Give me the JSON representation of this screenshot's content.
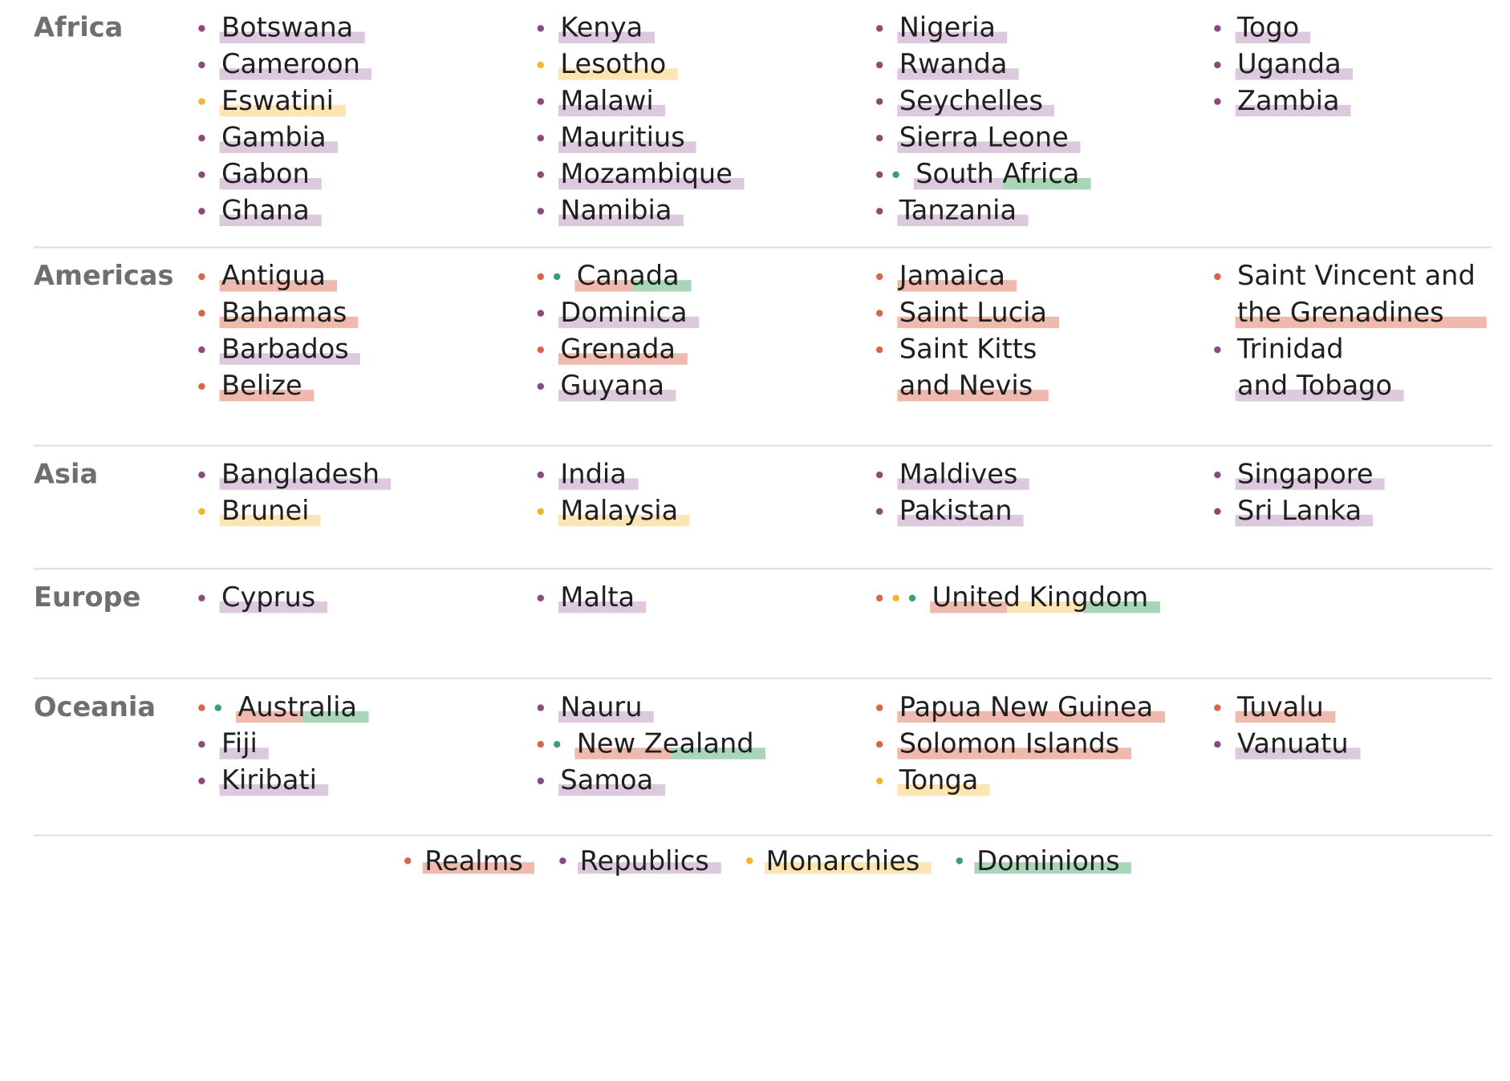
{
  "colors": {
    "realm_dot": "#d9644e",
    "realm_bg": "#efb9ad",
    "republic_dot": "#8b4a78",
    "republic_bg": "#ddc9de",
    "monarchy_dot": "#f2b530",
    "monarchy_bg": "#fce4b3",
    "dominion_dot": "#3a9e74",
    "dominion_bg": "#a9d6b8"
  },
  "regions": [
    {
      "label": "Africa",
      "columns": [
        [
          {
            "name": "Botswana",
            "types": [
              "republic"
            ]
          },
          {
            "name": "Cameroon",
            "types": [
              "republic"
            ]
          },
          {
            "name": "Eswatini",
            "types": [
              "monarchy"
            ]
          },
          {
            "name": "Gambia",
            "types": [
              "republic"
            ]
          },
          {
            "name": "Gabon",
            "types": [
              "republic"
            ]
          },
          {
            "name": "Ghana",
            "types": [
              "republic"
            ]
          }
        ],
        [
          {
            "name": "Kenya",
            "types": [
              "republic"
            ]
          },
          {
            "name": "Lesotho",
            "types": [
              "monarchy"
            ]
          },
          {
            "name": "Malawi",
            "types": [
              "republic"
            ]
          },
          {
            "name": "Mauritius",
            "types": [
              "republic"
            ]
          },
          {
            "name": "Mozambique",
            "types": [
              "republic"
            ]
          },
          {
            "name": "Namibia",
            "types": [
              "republic"
            ]
          }
        ],
        [
          {
            "name": "Nigeria",
            "types": [
              "republic"
            ]
          },
          {
            "name": "Rwanda",
            "types": [
              "republic"
            ]
          },
          {
            "name": "Seychelles",
            "types": [
              "republic"
            ]
          },
          {
            "name": "Sierra Leone",
            "types": [
              "republic"
            ]
          },
          {
            "name": "South Africa",
            "types": [
              "republic",
              "dominion"
            ]
          },
          {
            "name": "Tanzania",
            "types": [
              "republic"
            ]
          }
        ],
        [
          {
            "name": "Togo",
            "types": [
              "republic"
            ]
          },
          {
            "name": "Uganda",
            "types": [
              "republic"
            ]
          },
          {
            "name": "Zambia",
            "types": [
              "republic"
            ]
          }
        ]
      ]
    },
    {
      "label": "Americas",
      "columns": [
        [
          {
            "name": "Antigua",
            "types": [
              "realm"
            ]
          },
          {
            "name": "Bahamas",
            "types": [
              "realm"
            ]
          },
          {
            "name": "Barbados",
            "types": [
              "republic"
            ]
          },
          {
            "name": "Belize",
            "types": [
              "realm"
            ]
          }
        ],
        [
          {
            "name": "Canada",
            "types": [
              "realm",
              "dominion"
            ]
          },
          {
            "name": "Dominica",
            "types": [
              "republic"
            ]
          },
          {
            "name": "Grenada",
            "types": [
              "realm"
            ]
          },
          {
            "name": "Guyana",
            "types": [
              "republic"
            ]
          }
        ],
        [
          {
            "name": "Jamaica",
            "types": [
              "realm"
            ]
          },
          {
            "name": "Saint Lucia",
            "types": [
              "realm"
            ]
          },
          {
            "name": "Saint Kitts\nand Nevis",
            "types": [
              "realm"
            ]
          }
        ],
        [
          {
            "name": "Saint Vincent and\nthe Grenadines",
            "types": [
              "realm"
            ]
          },
          {
            "name": "Trinidad\nand Tobago",
            "types": [
              "republic"
            ]
          }
        ]
      ]
    },
    {
      "label": "Asia",
      "columns": [
        [
          {
            "name": "Bangladesh",
            "types": [
              "republic"
            ]
          },
          {
            "name": "Brunei",
            "types": [
              "monarchy"
            ]
          }
        ],
        [
          {
            "name": "India",
            "types": [
              "republic"
            ]
          },
          {
            "name": "Malaysia",
            "types": [
              "monarchy"
            ]
          }
        ],
        [
          {
            "name": "Maldives",
            "types": [
              "republic"
            ]
          },
          {
            "name": "Pakistan",
            "types": [
              "republic"
            ]
          }
        ],
        [
          {
            "name": "Singapore",
            "types": [
              "republic"
            ]
          },
          {
            "name": "Sri Lanka",
            "types": [
              "republic"
            ]
          }
        ]
      ]
    },
    {
      "label": "Europe",
      "columns": [
        [
          {
            "name": "Cyprus",
            "types": [
              "republic"
            ]
          }
        ],
        [
          {
            "name": "Malta",
            "types": [
              "republic"
            ]
          }
        ],
        [
          {
            "name": "United Kingdom",
            "types": [
              "realm",
              "monarchy",
              "dominion"
            ]
          }
        ],
        []
      ]
    },
    {
      "label": "Oceania",
      "columns": [
        [
          {
            "name": "Australia",
            "types": [
              "realm",
              "dominion"
            ]
          },
          {
            "name": "Fiji",
            "types": [
              "republic"
            ]
          },
          {
            "name": "Kiribati",
            "types": [
              "republic"
            ]
          }
        ],
        [
          {
            "name": "Nauru",
            "types": [
              "republic"
            ]
          },
          {
            "name": "New Zealand",
            "types": [
              "realm",
              "dominion"
            ]
          },
          {
            "name": "Samoa",
            "types": [
              "republic"
            ]
          }
        ],
        [
          {
            "name": "Papua New Guinea",
            "types": [
              "realm"
            ]
          },
          {
            "name": "Solomon Islands",
            "types": [
              "realm"
            ]
          },
          {
            "name": "Tonga",
            "types": [
              "monarchy"
            ]
          }
        ],
        [
          {
            "name": "Tuvalu",
            "types": [
              "realm"
            ]
          },
          {
            "name": "Vanuatu",
            "types": [
              "republic"
            ]
          }
        ]
      ]
    }
  ],
  "legend": [
    {
      "label": "Realms",
      "type": "realm"
    },
    {
      "label": "Republics",
      "type": "republic"
    },
    {
      "label": "Monarchies",
      "type": "monarchy"
    },
    {
      "label": "Dominions",
      "type": "dominion"
    }
  ]
}
